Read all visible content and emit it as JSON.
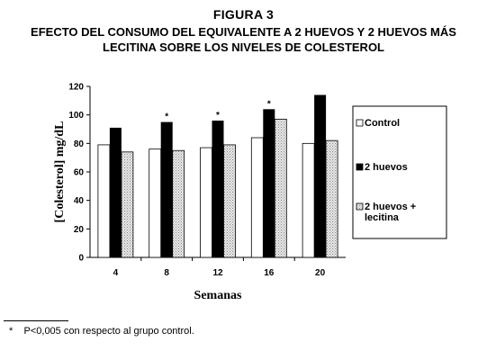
{
  "figure_label": "FIGURA 3",
  "title_lines": [
    "EFECTO DEL CONSUMO DEL EQUIVALENTE A 2 HUEVOS Y 2 HUEVOS MÁS",
    "LECITINA SOBRE LOS NIVELES DE COLESTEROL"
  ],
  "footnote": "*    P<0,005 con respecto al grupo control.",
  "colors": {
    "control": "#ffffff",
    "huevos": "#000000",
    "lecitina": "#d6d6d6"
  },
  "chart_data": {
    "type": "bar",
    "categories": [
      "4",
      "8",
      "12",
      "16",
      "20"
    ],
    "series": [
      {
        "name": "Control",
        "values": [
          79,
          76,
          77,
          84,
          80
        ]
      },
      {
        "name": "2 huevos",
        "values": [
          91,
          95,
          96,
          104,
          114
        ]
      },
      {
        "name": "2 huevos + lecitina",
        "values": [
          74,
          75,
          79,
          97,
          82
        ]
      }
    ],
    "significance_marks": [
      {
        "category": "8",
        "series": "2 huevos",
        "symbol": "*"
      },
      {
        "category": "12",
        "series": "2 huevos",
        "symbol": "*"
      },
      {
        "category": "16",
        "series": "2 huevos",
        "symbol": "*"
      }
    ],
    "xlabel": "Semanas",
    "ylabel": "[Colesterol] mg/dL",
    "ylim": [
      0,
      120
    ],
    "yticks": [
      0,
      20,
      40,
      60,
      80,
      100,
      120
    ],
    "grid": false,
    "legend_position": "right",
    "legend_entries": [
      "Control",
      "2 huevos",
      "2 huevos +|lecitina"
    ]
  }
}
